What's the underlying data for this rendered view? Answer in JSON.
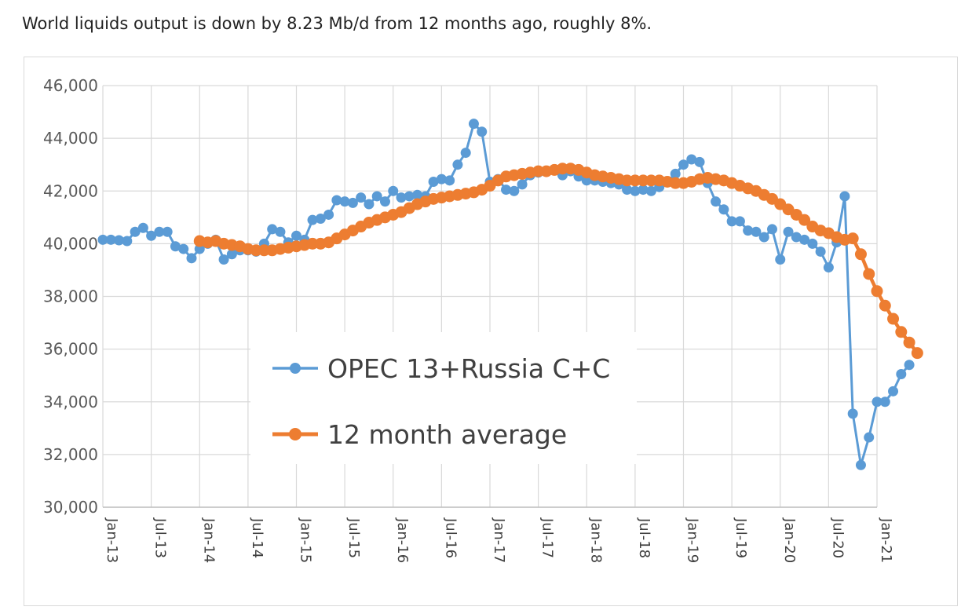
{
  "caption": "World liquids output is down by 8.23 Mb/d from 12 months ago, roughly 8%.",
  "colors": {
    "series1": "#5b9bd5",
    "series2": "#ed7d31",
    "grid": "#d9d9d9",
    "axis": "#bfbfbf"
  },
  "chart_data": {
    "type": "line",
    "title": "",
    "xlabel": "",
    "ylabel": "",
    "ylim": [
      30000,
      46000
    ],
    "yticks": [
      30000,
      32000,
      34000,
      36000,
      38000,
      40000,
      42000,
      44000,
      46000
    ],
    "ytick_labels": [
      "30,000",
      "32,000",
      "34,000",
      "36,000",
      "38,000",
      "40,000",
      "42,000",
      "44,000",
      "46,000"
    ],
    "xtick_labels": [
      "Jan-13",
      "Jul-13",
      "Jan-14",
      "Jul-14",
      "Jan-15",
      "Jul-15",
      "Jan-16",
      "Jul-16",
      "Jan-17",
      "Jul-17",
      "Jan-18",
      "Jul-18",
      "Jan-19",
      "Jul-19",
      "Jan-20",
      "Jul-20",
      "Jan-21"
    ],
    "x_start": "Jan-13",
    "x_end": "Jan-21",
    "grid": true,
    "legend": "center-left",
    "series": [
      {
        "name": "OPEC 13+Russia C+C",
        "values": [
          40150,
          40150,
          40130,
          40100,
          40450,
          40600,
          40300,
          40450,
          40450,
          39900,
          39800,
          39450,
          39800,
          40000,
          40150,
          39400,
          39600,
          39750,
          39750,
          39700,
          40000,
          40550,
          40450,
          40050,
          40300,
          40150,
          40900,
          40950,
          41100,
          41650,
          41600,
          41550,
          41750,
          41500,
          41800,
          41600,
          42000,
          41750,
          41800,
          41850,
          41800,
          42350,
          42450,
          42400,
          43000,
          43450,
          44550,
          44250,
          42350,
          42450,
          42050,
          42000,
          42250,
          42600,
          42700,
          42750,
          42800,
          42600,
          42750,
          42550,
          42400,
          42400,
          42350,
          42300,
          42250,
          42050,
          42000,
          42050,
          42000,
          42150,
          42350,
          42650,
          43000,
          43200,
          43100,
          42300,
          41600,
          41300,
          40850,
          40850,
          40500,
          40450,
          40250,
          40550,
          39400,
          40450,
          40250,
          40150,
          40000,
          39700,
          39100,
          40050,
          41800,
          33550,
          31600,
          32650,
          34000,
          34000,
          34400,
          35050,
          35400
        ]
      },
      {
        "name": "12 month average",
        "start_index": 12,
        "values": [
          40100,
          40050,
          40100,
          40000,
          39950,
          39900,
          39800,
          39750,
          39750,
          39750,
          39800,
          39850,
          39900,
          39950,
          40000,
          40000,
          40050,
          40200,
          40350,
          40500,
          40650,
          40800,
          40900,
          41000,
          41100,
          41200,
          41350,
          41500,
          41600,
          41700,
          41750,
          41800,
          41850,
          41900,
          41950,
          42050,
          42200,
          42400,
          42550,
          42600,
          42650,
          42700,
          42750,
          42750,
          42800,
          42850,
          42850,
          42800,
          42700,
          42600,
          42550,
          42500,
          42450,
          42400,
          42400,
          42400,
          42400,
          42400,
          42350,
          42300,
          42300,
          42350,
          42450,
          42500,
          42450,
          42400,
          42300,
          42200,
          42100,
          42000,
          41850,
          41700,
          41500,
          41300,
          41100,
          40900,
          40650,
          40500,
          40400,
          40250,
          40150,
          40200,
          39600,
          38850,
          38200,
          37650,
          37150,
          36650,
          36250,
          35850
        ]
      }
    ]
  }
}
